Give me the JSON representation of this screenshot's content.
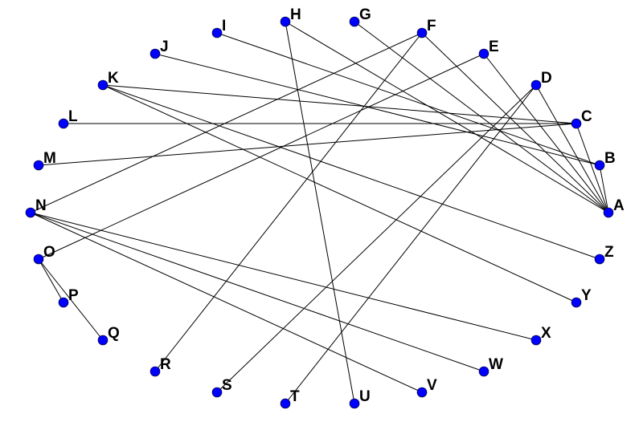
{
  "graph": {
    "node_color": "#0000ff",
    "edge_color": "#000000",
    "nodes": [
      {
        "id": "A",
        "label": "A"
      },
      {
        "id": "B",
        "label": "B"
      },
      {
        "id": "C",
        "label": "C"
      },
      {
        "id": "D",
        "label": "D"
      },
      {
        "id": "E",
        "label": "E"
      },
      {
        "id": "F",
        "label": "F"
      },
      {
        "id": "G",
        "label": "G"
      },
      {
        "id": "H",
        "label": "H"
      },
      {
        "id": "I",
        "label": "I"
      },
      {
        "id": "J",
        "label": "J"
      },
      {
        "id": "K",
        "label": "K"
      },
      {
        "id": "L",
        "label": "L"
      },
      {
        "id": "M",
        "label": "M"
      },
      {
        "id": "N",
        "label": "N"
      },
      {
        "id": "O",
        "label": "O"
      },
      {
        "id": "P",
        "label": "P"
      },
      {
        "id": "Q",
        "label": "Q"
      },
      {
        "id": "R",
        "label": "R"
      },
      {
        "id": "S",
        "label": "S"
      },
      {
        "id": "T",
        "label": "T"
      },
      {
        "id": "U",
        "label": "U"
      },
      {
        "id": "V",
        "label": "V"
      },
      {
        "id": "W",
        "label": "W"
      },
      {
        "id": "X",
        "label": "X"
      },
      {
        "id": "Y",
        "label": "Y"
      },
      {
        "id": "Z",
        "label": "Z"
      }
    ],
    "edges": [
      [
        "H",
        "U"
      ],
      [
        "H",
        "A"
      ],
      [
        "G",
        "A"
      ],
      [
        "F",
        "R"
      ],
      [
        "F",
        "N"
      ],
      [
        "F",
        "A"
      ],
      [
        "E",
        "O"
      ],
      [
        "E",
        "A"
      ],
      [
        "D",
        "S"
      ],
      [
        "D",
        "T"
      ],
      [
        "D",
        "A"
      ],
      [
        "I",
        "B"
      ],
      [
        "J",
        "B"
      ],
      [
        "K",
        "C"
      ],
      [
        "K",
        "Z"
      ],
      [
        "K",
        "Y"
      ],
      [
        "L",
        "C"
      ],
      [
        "M",
        "C"
      ],
      [
        "N",
        "X"
      ],
      [
        "N",
        "W"
      ],
      [
        "N",
        "V"
      ],
      [
        "O",
        "P"
      ],
      [
        "O",
        "Q"
      ],
      [
        "C",
        "A"
      ],
      [
        "B",
        "A"
      ]
    ]
  }
}
